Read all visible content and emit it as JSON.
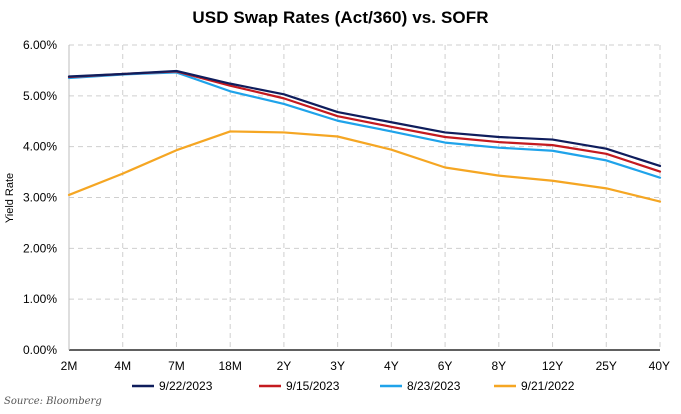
{
  "chart_data": {
    "type": "line",
    "title": "USD Swap Rates (Act/360) vs. SOFR",
    "xlabel": "",
    "ylabel": "Yield Rate",
    "categories": [
      "2M",
      "4M",
      "7M",
      "18M",
      "2Y",
      "3Y",
      "4Y",
      "6Y",
      "8Y",
      "12Y",
      "25Y",
      "40Y"
    ],
    "ylim": [
      0,
      6
    ],
    "yticks": [
      "0.00%",
      "1.00%",
      "2.00%",
      "3.00%",
      "4.00%",
      "5.00%",
      "6.00%"
    ],
    "grid": "dashed",
    "legend_position": "bottom",
    "series": [
      {
        "name": "9/22/2023",
        "color": "#0f1d5c",
        "values": [
          5.38,
          5.43,
          5.49,
          5.24,
          5.03,
          4.68,
          4.48,
          4.28,
          4.19,
          4.14,
          3.96,
          3.62
        ]
      },
      {
        "name": "9/15/2023",
        "color": "#c41a1f",
        "values": [
          5.37,
          5.43,
          5.48,
          5.2,
          4.95,
          4.6,
          4.39,
          4.19,
          4.09,
          4.03,
          3.86,
          3.51
        ]
      },
      {
        "name": "8/23/2023",
        "color": "#1fa3ea",
        "values": [
          5.35,
          5.42,
          5.46,
          5.09,
          4.84,
          4.51,
          4.3,
          4.08,
          3.98,
          3.92,
          3.73,
          3.39
        ]
      },
      {
        "name": "9/21/2022",
        "color": "#f5a623",
        "values": [
          3.05,
          3.47,
          3.93,
          4.3,
          4.28,
          4.2,
          3.94,
          3.59,
          3.43,
          3.33,
          3.18,
          2.92
        ]
      }
    ]
  },
  "source": "Source: Bloomberg"
}
